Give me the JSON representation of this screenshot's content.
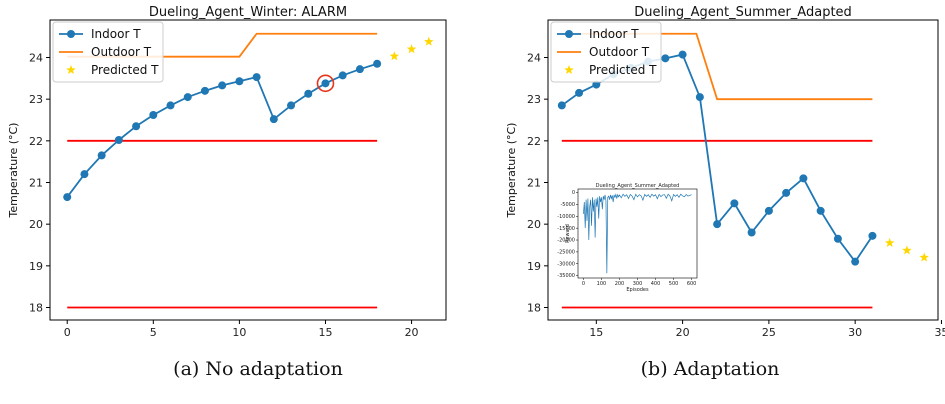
{
  "captions": [
    "(a) No adaptation",
    "(b) Adaptation"
  ],
  "chart_data": [
    {
      "type": "line",
      "title": "Dueling_Agent_Winter: ALARM",
      "ylabel": "Temperature (°C)",
      "xlim": [
        -1,
        22
      ],
      "ylim": [
        17.7,
        24.9
      ],
      "xticks": [
        0,
        5,
        10,
        15,
        20
      ],
      "yticks": [
        18,
        19,
        20,
        21,
        22,
        23,
        24
      ],
      "legend_position": "upper-left",
      "series": [
        {
          "name": "Indoor T",
          "color": "#1f77b4",
          "marker": "circle",
          "x": [
            0,
            1,
            2,
            3,
            4,
            5,
            6,
            7,
            8,
            9,
            10,
            11,
            12,
            13,
            14,
            15,
            16,
            17,
            18
          ],
          "y": [
            20.65,
            21.2,
            21.65,
            22.02,
            22.35,
            22.62,
            22.85,
            23.05,
            23.2,
            23.33,
            23.43,
            23.53,
            22.52,
            22.85,
            23.13,
            23.38,
            23.57,
            23.72,
            23.85
          ]
        },
        {
          "name": "Outdoor T",
          "color": "#ff7f0e",
          "x": [
            0,
            10,
            11,
            18
          ],
          "y": [
            24.02,
            24.02,
            24.57,
            24.57
          ]
        },
        {
          "name": "Predicted T",
          "color": "#ffd700",
          "marker": "star",
          "x": [
            19,
            20,
            21
          ],
          "y": [
            24.03,
            24.2,
            24.38
          ]
        }
      ],
      "limits": [
        {
          "y": 22,
          "x": [
            0,
            18
          ],
          "color": "#ff0000"
        },
        {
          "y": 18,
          "x": [
            0,
            18
          ],
          "color": "#ff0000"
        }
      ],
      "highlight": {
        "x": 15,
        "y": 23.38,
        "color": "#e8341c"
      }
    },
    {
      "type": "line",
      "title": "Dueling_Agent_Summer_Adapted",
      "ylabel": "Temperature (°C)",
      "xlim": [
        12.2,
        34.8
      ],
      "ylim": [
        17.7,
        24.9
      ],
      "xticks": [
        15,
        20,
        25,
        30,
        35
      ],
      "yticks": [
        18,
        19,
        20,
        21,
        22,
        23,
        24
      ],
      "legend_position": "upper-left",
      "series": [
        {
          "name": "Indoor T",
          "color": "#1f77b4",
          "marker": "circle",
          "x": [
            13,
            14,
            15,
            16,
            17,
            18,
            19,
            20,
            21,
            22,
            23,
            24,
            25,
            26,
            27,
            28,
            29,
            30,
            31
          ],
          "y": [
            22.85,
            23.15,
            23.35,
            23.6,
            23.75,
            23.9,
            23.98,
            24.07,
            23.05,
            20.0,
            20.5,
            19.8,
            20.32,
            20.75,
            21.1,
            20.32,
            19.65,
            19.1,
            19.72
          ]
        },
        {
          "name": "Outdoor T",
          "color": "#ff7f0e",
          "x": [
            13,
            20.8,
            22,
            31
          ],
          "y": [
            24.57,
            24.57,
            23.0,
            23.0
          ]
        },
        {
          "name": "Predicted T",
          "color": "#ffd700",
          "marker": "star",
          "x": [
            32,
            33,
            34
          ],
          "y": [
            19.55,
            19.37,
            19.2
          ]
        }
      ],
      "limits": [
        {
          "y": 22,
          "x": [
            13,
            31
          ],
          "color": "#ff0000"
        },
        {
          "y": 18,
          "x": [
            13,
            31
          ],
          "color": "#ff0000"
        }
      ]
    },
    {
      "type": "line",
      "title": "Dueling_Agent_Summer_Adapted",
      "xlabel": "Episodes",
      "ylabel": "Reward",
      "xlim": [
        -30,
        630
      ],
      "ylim": [
        -36000,
        1500
      ],
      "xticks": [
        0,
        100,
        200,
        300,
        400,
        500,
        600
      ],
      "yticks": [
        0,
        -5000,
        -10000,
        -15000,
        -20000,
        -25000,
        -30000,
        -35000
      ],
      "series": [
        {
          "name": "",
          "color": "#1f77b4",
          "x": [
            0,
            5,
            10,
            15,
            20,
            25,
            30,
            35,
            40,
            45,
            50,
            55,
            60,
            65,
            70,
            75,
            80,
            85,
            90,
            95,
            100,
            105,
            110,
            115,
            120,
            125,
            130,
            135,
            140,
            145,
            150,
            155,
            160,
            165,
            170,
            175,
            180,
            185,
            190,
            195,
            200,
            210,
            220,
            230,
            240,
            250,
            260,
            270,
            280,
            290,
            300,
            310,
            320,
            330,
            340,
            350,
            360,
            370,
            380,
            390,
            400,
            410,
            420,
            430,
            440,
            450,
            460,
            470,
            480,
            490,
            500,
            510,
            520,
            530,
            540,
            550,
            560,
            570,
            580,
            590,
            600
          ],
          "y": [
            -9000,
            -4000,
            -15000,
            -3000,
            -12000,
            -2500,
            -20000,
            -6000,
            -3000,
            -14000,
            -2000,
            -8000,
            -3000,
            -19000,
            -2500,
            -6000,
            -2000,
            -11000,
            -1500,
            -4000,
            -2000,
            -7000,
            -1500,
            -3000,
            -1000,
            -3500,
            -34000,
            -2000,
            -1500,
            -3000,
            -1000,
            -2500,
            -1200,
            -4000,
            -1000,
            -2000,
            -800,
            -2500,
            -900,
            -1800,
            -1000,
            -2200,
            -700,
            -1600,
            -900,
            -2500,
            -800,
            -1500,
            -3000,
            -700,
            -1800,
            -900,
            -1400,
            -3200,
            -800,
            -1600,
            -900,
            -2000,
            -700,
            -1500,
            -900,
            -2600,
            -800,
            -1700,
            -1000,
            -900,
            -2400,
            -700,
            -1500,
            -3500,
            -800,
            -1600,
            -900,
            -2000,
            -700,
            -1400,
            -1800,
            -800,
            -1500,
            -1200,
            -900
          ]
        }
      ]
    }
  ]
}
